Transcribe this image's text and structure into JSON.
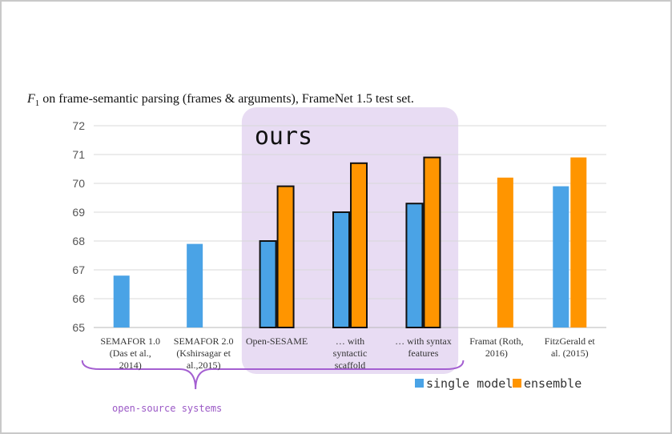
{
  "chart_data": {
    "type": "bar",
    "title_prefix": "F",
    "title_sub": "1",
    "title_rest": " on frame-semantic parsing (frames & arguments), FrameNet 1.5 test set.",
    "ylim": [
      65,
      72
    ],
    "yticks": [
      "65",
      "66",
      "67",
      "68",
      "69",
      "70",
      "71",
      "72"
    ],
    "categories": [
      [
        "SEMAFOR 1.0",
        "(Das et al.,",
        "2014)"
      ],
      [
        "SEMAFOR 2.0",
        "(Kshirsagar et",
        "al.,2015)"
      ],
      [
        "Open-SESAME"
      ],
      [
        "… with",
        "syntactic",
        "scaffold"
      ],
      [
        "… with syntax",
        "features"
      ],
      [
        "Framat (Roth,",
        "2016)"
      ],
      [
        "FitzGerald et",
        "al. (2015)"
      ]
    ],
    "series": [
      {
        "name": "single model",
        "color": "#4aa3e6",
        "values": [
          66.8,
          67.9,
          68.0,
          69.0,
          69.3,
          null,
          69.9
        ]
      },
      {
        "name": "ensemble",
        "color": "#ff9500",
        "values": [
          null,
          null,
          69.9,
          70.7,
          70.9,
          70.2,
          70.9
        ]
      }
    ],
    "highlight": {
      "label": "ours",
      "categories": [
        2,
        3,
        4
      ],
      "color": "#e8dcf3"
    },
    "brace": {
      "label": "open-source  systems",
      "categories": [
        0,
        4
      ],
      "color": "#a45fd1"
    },
    "legend_placement": "bottom-right",
    "grid": true
  }
}
